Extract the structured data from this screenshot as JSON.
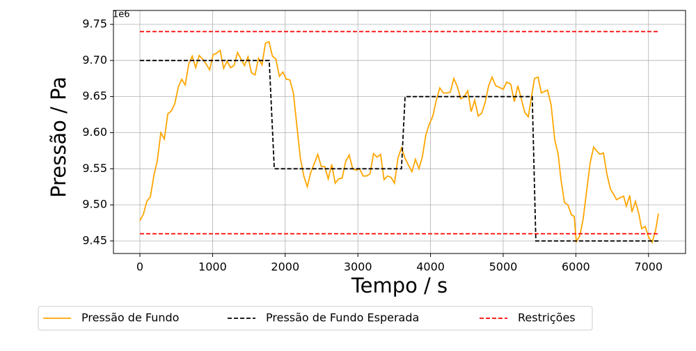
{
  "chart_data": {
    "type": "line",
    "y_label": "Pressão / Pa",
    "x_label": "Tempo / s",
    "y_offset_label": "1e6",
    "xlim": [
      -364,
      7510
    ],
    "xticks": [
      0,
      1000,
      2000,
      3000,
      4000,
      5000,
      6000,
      7000
    ],
    "ylim": [
      9432600,
      9769300
    ],
    "yticks": [
      {
        "value": 9450000,
        "label": "9.45"
      },
      {
        "value": 9500000,
        "label": "9.50"
      },
      {
        "value": 9550000,
        "label": "9.55"
      },
      {
        "value": 9600000,
        "label": "9.60"
      },
      {
        "value": 9650000,
        "label": "9.65"
      },
      {
        "value": 9700000,
        "label": "9.70"
      },
      {
        "value": 9750000,
        "label": "9.75"
      }
    ],
    "grid": true,
    "legend": "below",
    "series": [
      {
        "name": "Pressão de Fundo",
        "color": "#ffa500",
        "linestyle": "solid",
        "x": [
          0,
          48,
          96,
          144,
          192,
          240,
          288,
          336,
          384,
          432,
          480,
          528,
          576,
          624,
          672,
          720,
          768,
          816,
          864,
          912,
          960,
          1008,
          1056,
          1104,
          1152,
          1200,
          1248,
          1296,
          1344,
          1392,
          1440,
          1488,
          1536,
          1584,
          1632,
          1680,
          1728,
          1776,
          1824,
          1872,
          1920,
          1968,
          2016,
          2064,
          2112,
          2160,
          2208,
          2256,
          2304,
          2352,
          2400,
          2448,
          2496,
          2544,
          2592,
          2640,
          2688,
          2736,
          2784,
          2832,
          2880,
          2928,
          2976,
          3024,
          3072,
          3120,
          3168,
          3216,
          3264,
          3312,
          3360,
          3408,
          3456,
          3504,
          3552,
          3600,
          3648,
          3696,
          3744,
          3792,
          3840,
          3888,
          3936,
          3984,
          4032,
          4080,
          4128,
          4176,
          4224,
          4272,
          4320,
          4368,
          4416,
          4464,
          4512,
          4560,
          4608,
          4656,
          4704,
          4752,
          4800,
          4848,
          4896,
          4944,
          5000,
          5048,
          5105,
          5153,
          5201,
          5249,
          5297,
          5345,
          5430,
          5480,
          5525,
          5610,
          5660,
          5710,
          5757,
          5795,
          5843,
          5890,
          5940,
          5977,
          6006,
          6054,
          6100,
          6150,
          6197,
          6245,
          6293,
          6331,
          6380,
          6427,
          6475,
          6523,
          6561,
          6609,
          6657,
          6695,
          6743,
          6772,
          6820,
          6868,
          6906,
          6954,
          7002,
          7050,
          7098,
          7136
        ],
        "values": [
          9478000,
          9487000,
          9505000,
          9511000,
          9540000,
          9562000,
          9600000,
          9591000,
          9626000,
          9630000,
          9640000,
          9663000,
          9674000,
          9666000,
          9695000,
          9706000,
          9690000,
          9707000,
          9702000,
          9695000,
          9687000,
          9708000,
          9710000,
          9714000,
          9689000,
          9699000,
          9690000,
          9693000,
          9711000,
          9702000,
          9693000,
          9705000,
          9683000,
          9680000,
          9703000,
          9694000,
          9724000,
          9726000,
          9706000,
          9702000,
          9678000,
          9684000,
          9674000,
          9673000,
          9655000,
          9610000,
          9565000,
          9540000,
          9525000,
          9545000,
          9557000,
          9570000,
          9553000,
          9553000,
          9536000,
          9556000,
          9530000,
          9536000,
          9537000,
          9560000,
          9569000,
          9550000,
          9548000,
          9550000,
          9540000,
          9540000,
          9543000,
          9571000,
          9566000,
          9570000,
          9535000,
          9540000,
          9538000,
          9530000,
          9565000,
          9579000,
          9565000,
          9555000,
          9546000,
          9563000,
          9550000,
          9567000,
          9597000,
          9612000,
          9623000,
          9645000,
          9662000,
          9655000,
          9655000,
          9656000,
          9675000,
          9664000,
          9647000,
          9650000,
          9658000,
          9629000,
          9645000,
          9623000,
          9627000,
          9642000,
          9665000,
          9677000,
          9665000,
          9663000,
          9660000,
          9670000,
          9667000,
          9643000,
          9665000,
          9647000,
          9628000,
          9622000,
          9675000,
          9677000,
          9655000,
          9659000,
          9638000,
          9590000,
          9570000,
          9535000,
          9503000,
          9500000,
          9486000,
          9484000,
          9449000,
          9457000,
          9480000,
          9520000,
          9558000,
          9580000,
          9574000,
          9570000,
          9572000,
          9543000,
          9522000,
          9514000,
          9507000,
          9510000,
          9512000,
          9498000,
          9513000,
          9490000,
          9505000,
          9487000,
          9467000,
          9470000,
          9455000,
          9448000,
          9465000,
          9488000
        ]
      },
      {
        "name": "Pressão de Fundo Esperada",
        "color": "#000000",
        "linestyle": "dashed",
        "x": [
          0,
          1780,
          1850,
          3600,
          3650,
          5400,
          5450,
          7150
        ],
        "values": [
          9700000,
          9700000,
          9550000,
          9550000,
          9650000,
          9650000,
          9450000,
          9450000
        ]
      },
      {
        "name": "Restrições",
        "color": "#ff0000",
        "linestyle": "dashed",
        "x": [
          0,
          7150,
          7150,
          0,
          7150
        ],
        "values": [
          9740000,
          9740000,
          null,
          9460000,
          9460000
        ]
      }
    ]
  }
}
